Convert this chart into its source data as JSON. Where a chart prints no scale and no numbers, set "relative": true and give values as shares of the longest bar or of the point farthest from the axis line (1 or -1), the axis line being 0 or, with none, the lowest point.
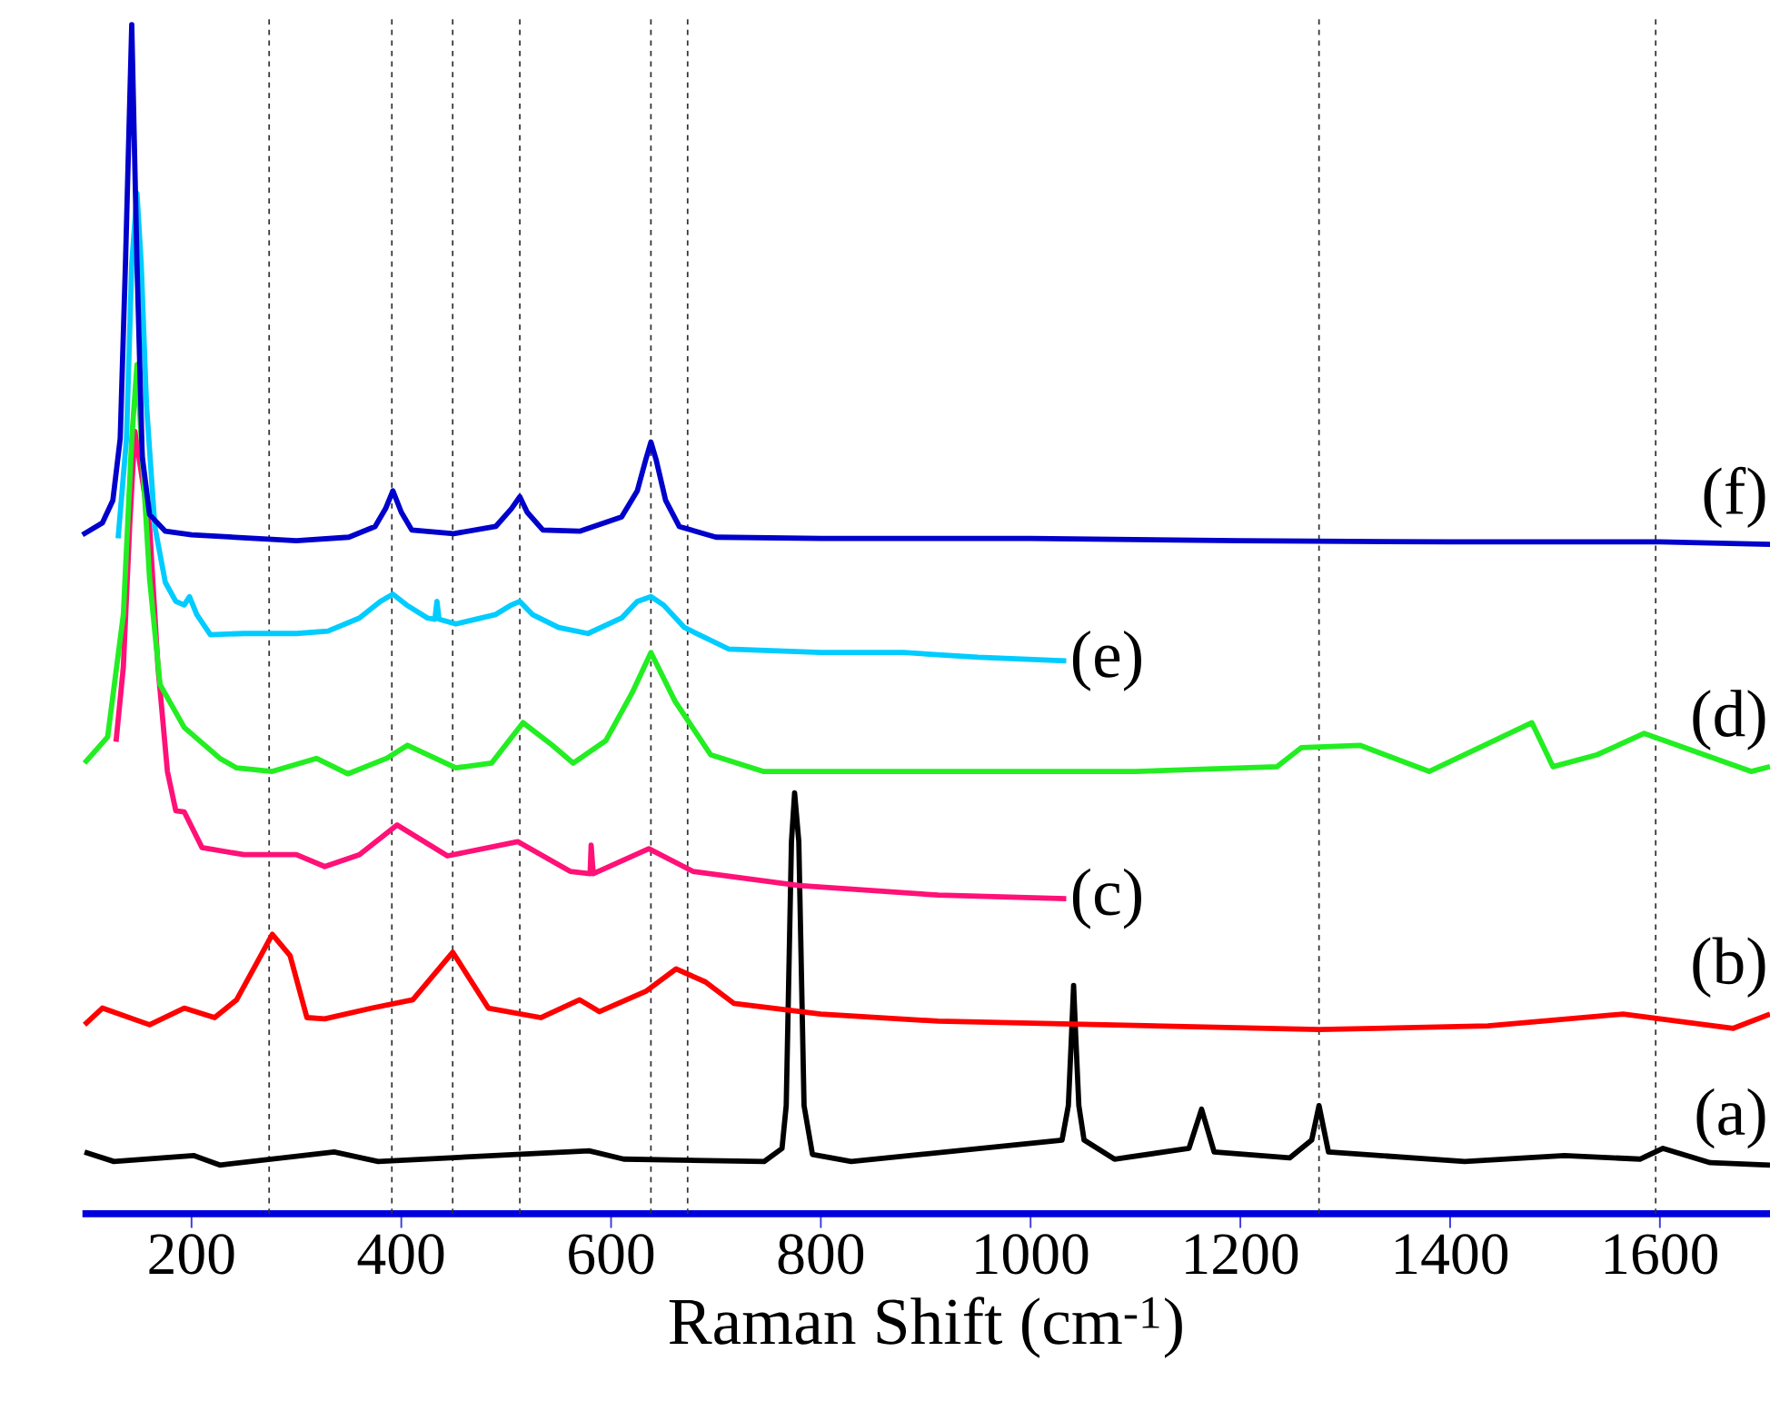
{
  "chart_data": {
    "type": "line",
    "xlabel": "Raman Shift (cm$^{-1}$)",
    "relative": true,
    "legend": false,
    "grid": false,
    "line_style": "solid",
    "xlim": [
      96,
      1705
    ],
    "xticks": [
      200,
      400,
      600,
      800,
      1000,
      1200,
      1400,
      1600
    ],
    "ref_lines": [
      {
        "axis": "x",
        "value": 274,
        "color": "#333333",
        "line_style": "dashed"
      },
      {
        "axis": "x",
        "value": 391,
        "color": "#333333",
        "line_style": "dashed"
      },
      {
        "axis": "x",
        "value": 449,
        "color": "#333333",
        "line_style": "dashed"
      },
      {
        "axis": "x",
        "value": 513,
        "color": "#333333",
        "line_style": "dashed"
      },
      {
        "axis": "x",
        "value": 638,
        "color": "#333333",
        "line_style": "dashed"
      },
      {
        "axis": "x",
        "value": 673,
        "color": "#333333",
        "line_style": "dashed"
      },
      {
        "axis": "x",
        "value": 1275,
        "color": "#333333",
        "line_style": "dashed"
      },
      {
        "axis": "x",
        "value": 1596,
        "color": "#333333",
        "line_style": "dashed"
      }
    ],
    "series": [
      {
        "name": "(a)",
        "color": "#000000",
        "x": [
          98,
          126,
          202,
          227,
          336,
          378,
          579,
          612,
          746,
          763,
          767,
          772,
          775,
          779,
          784,
          792,
          829,
          1030,
          1036,
          1039,
          1041,
          1043,
          1046,
          1051,
          1080,
          1151,
          1163,
          1175,
          1247,
          1268,
          1275,
          1284,
          1414,
          1509,
          1581,
          1603,
          1648,
          1705
        ],
        "values": [
          0.052,
          0.044,
          0.049,
          0.041,
          0.052,
          0.044,
          0.053,
          0.046,
          0.044,
          0.055,
          0.091,
          0.313,
          0.354,
          0.313,
          0.091,
          0.05,
          0.044,
          0.062,
          0.091,
          0.15,
          0.192,
          0.15,
          0.091,
          0.062,
          0.046,
          0.055,
          0.088,
          0.052,
          0.047,
          0.062,
          0.091,
          0.052,
          0.044,
          0.049,
          0.046,
          0.055,
          0.043,
          0.041
        ]
      },
      {
        "name": "(b)",
        "color": "#ff0000",
        "x": [
          98,
          115,
          160,
          193,
          222,
          243,
          266,
          277,
          294,
          310,
          327,
          372,
          411,
          449,
          483,
          533,
          570,
          589,
          633,
          662,
          690,
          717,
          800,
          912,
          1275,
          1436,
          1565,
          1670,
          1705
        ],
        "values": [
          0.159,
          0.173,
          0.159,
          0.173,
          0.165,
          0.18,
          0.217,
          0.235,
          0.217,
          0.165,
          0.164,
          0.173,
          0.18,
          0.22,
          0.173,
          0.165,
          0.18,
          0.17,
          0.187,
          0.206,
          0.195,
          0.177,
          0.168,
          0.162,
          0.155,
          0.158,
          0.168,
          0.156,
          0.168
        ]
      },
      {
        "name": "(c)",
        "color": "#ff1177",
        "x": [
          128,
          135,
          141,
          146,
          160,
          168,
          177,
          185,
          193,
          210,
          250,
          300,
          327,
          360,
          396,
          444,
          511,
          561,
          580,
          581,
          583,
          636,
          678,
          779,
          912,
          1034
        ],
        "values": [
          0.397,
          0.46,
          0.578,
          0.658,
          0.578,
          0.46,
          0.372,
          0.339,
          0.338,
          0.308,
          0.302,
          0.302,
          0.292,
          0.302,
          0.327,
          0.301,
          0.313,
          0.288,
          0.286,
          0.31,
          0.286,
          0.307,
          0.288,
          0.276,
          0.268,
          0.265
        ]
      },
      {
        "name": "(d)",
        "color": "#22ee22",
        "x": [
          98,
          120,
          135,
          143,
          148,
          153,
          160,
          170,
          193,
          227,
          243,
          277,
          319,
          349,
          386,
          406,
          452,
          486,
          516,
          544,
          564,
          595,
          620,
          638,
          661,
          695,
          745,
          900,
          1100,
          1235,
          1258,
          1314,
          1380,
          1478,
          1498,
          1540,
          1585,
          1687,
          1705
        ],
        "values": [
          0.379,
          0.401,
          0.504,
          0.652,
          0.714,
          0.637,
          0.534,
          0.445,
          0.409,
          0.383,
          0.375,
          0.372,
          0.383,
          0.37,
          0.383,
          0.394,
          0.375,
          0.379,
          0.413,
          0.394,
          0.379,
          0.398,
          0.438,
          0.472,
          0.431,
          0.386,
          0.372,
          0.372,
          0.372,
          0.376,
          0.392,
          0.394,
          0.372,
          0.413,
          0.376,
          0.386,
          0.404,
          0.372,
          0.376
        ]
      },
      {
        "name": "(e)",
        "color": "#00ccff",
        "x": [
          130,
          138,
          143,
          148,
          152,
          157,
          165,
          175,
          185,
          193,
          198,
          205,
          218,
          250,
          300,
          330,
          360,
          380,
          392,
          405,
          425,
          432,
          434,
          436,
          452,
          490,
          505,
          513,
          525,
          550,
          578,
          610,
          625,
          638,
          650,
          670,
          712,
          800,
          879,
          950,
          1034
        ],
        "values": [
          0.568,
          0.652,
          0.799,
          0.858,
          0.799,
          0.681,
          0.578,
          0.531,
          0.515,
          0.512,
          0.519,
          0.504,
          0.487,
          0.488,
          0.488,
          0.49,
          0.501,
          0.515,
          0.521,
          0.512,
          0.501,
          0.5,
          0.515,
          0.5,
          0.496,
          0.504,
          0.512,
          0.515,
          0.504,
          0.493,
          0.488,
          0.501,
          0.515,
          0.519,
          0.512,
          0.493,
          0.475,
          0.472,
          0.472,
          0.468,
          0.465
        ]
      },
      {
        "name": "(f)",
        "color": "#0000cc",
        "x": [
          96,
          115,
          125,
          132,
          137,
          143,
          148,
          153,
          160,
          175,
          200,
          300,
          350,
          375,
          385,
          392,
          400,
          410,
          450,
          490,
          505,
          513,
          520,
          535,
          570,
          610,
          625,
          633,
          638,
          643,
          652,
          665,
          700,
          800,
          1000,
          1200,
          1400,
          1600,
          1705
        ],
        "values": [
          0.571,
          0.581,
          0.6,
          0.652,
          0.799,
          1.0,
          0.799,
          0.637,
          0.588,
          0.574,
          0.571,
          0.566,
          0.569,
          0.578,
          0.593,
          0.608,
          0.59,
          0.575,
          0.572,
          0.578,
          0.593,
          0.603,
          0.59,
          0.575,
          0.574,
          0.586,
          0.608,
          0.634,
          0.649,
          0.634,
          0.6,
          0.578,
          0.569,
          0.568,
          0.568,
          0.566,
          0.565,
          0.565,
          0.563
        ]
      }
    ]
  }
}
